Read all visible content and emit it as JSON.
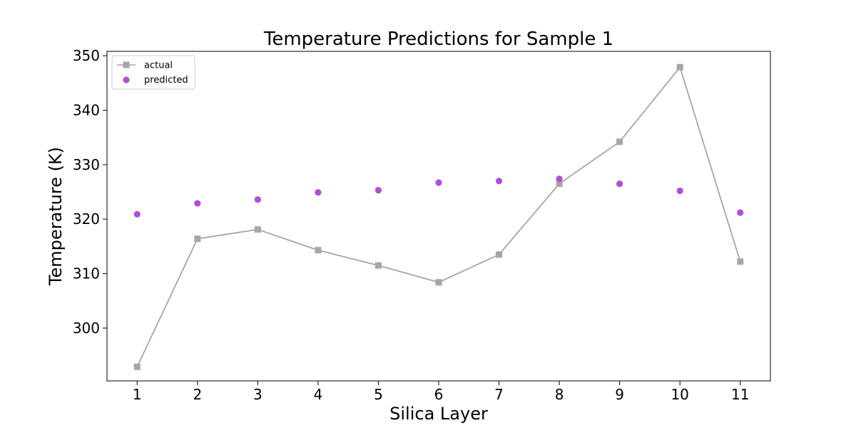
{
  "chart_data": {
    "type": "line",
    "title": "Temperature Predictions for Sample 1",
    "xlabel": "Silica Layer",
    "ylabel": "Temperature (K)",
    "x": [
      1,
      2,
      3,
      4,
      5,
      6,
      7,
      8,
      9,
      10,
      11
    ],
    "xlim": [
      0.5,
      11.5
    ],
    "ylim": [
      290.3,
      350.8
    ],
    "yticks": [
      300,
      310,
      320,
      330,
      340,
      350
    ],
    "grid": false,
    "legend_position": "top-left",
    "series": [
      {
        "name": "actual",
        "style": "line-square-markers",
        "color": "#a6a6a6",
        "values": [
          292.9,
          316.4,
          318.1,
          314.3,
          311.5,
          308.4,
          313.5,
          326.5,
          334.2,
          347.9,
          312.2
        ]
      },
      {
        "name": "predicted",
        "style": "scatter-circle",
        "color": "#b24fd6",
        "values": [
          320.9,
          322.9,
          323.6,
          324.9,
          325.3,
          326.7,
          327.0,
          327.4,
          326.5,
          325.2,
          321.2
        ]
      }
    ]
  }
}
